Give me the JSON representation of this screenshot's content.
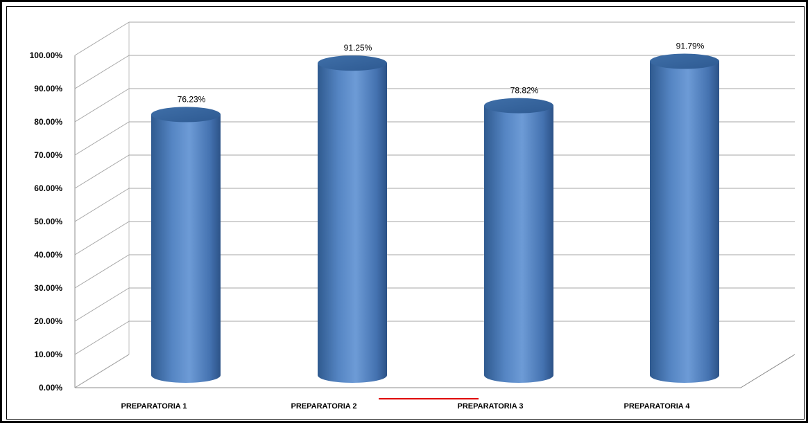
{
  "chart_data": {
    "type": "bar",
    "style": "3d-cylinder",
    "categories": [
      "PREPARATORIA 1",
      "PREPARATORIA 2",
      "PREPARATORIA 3",
      "PREPARATORIA  4"
    ],
    "values": [
      76.23,
      91.25,
      78.82,
      91.79
    ],
    "data_labels": [
      "76.23%",
      "91.25%",
      "78.82%",
      "91.79%"
    ],
    "ylim": [
      0,
      100
    ],
    "yticks": [
      0,
      10,
      20,
      30,
      40,
      50,
      60,
      70,
      80,
      90,
      100
    ],
    "ytick_labels": [
      "0.00%",
      "10.00%",
      "20.00%",
      "30.00%",
      "40.00%",
      "50.00%",
      "60.00%",
      "70.00%",
      "80.00%",
      "90.00%",
      "100.00%"
    ],
    "grid": true,
    "legend": "none",
    "title": "",
    "xlabel": "",
    "ylabel": "",
    "colors": {
      "bar_main": "#4f81bd",
      "bar_light": "#6c9ad6",
      "bar_dark": "#2d5586",
      "bar_top": "#3e6ea8",
      "gridline": "#a6a6a6",
      "accent_line": "#e00000"
    }
  }
}
